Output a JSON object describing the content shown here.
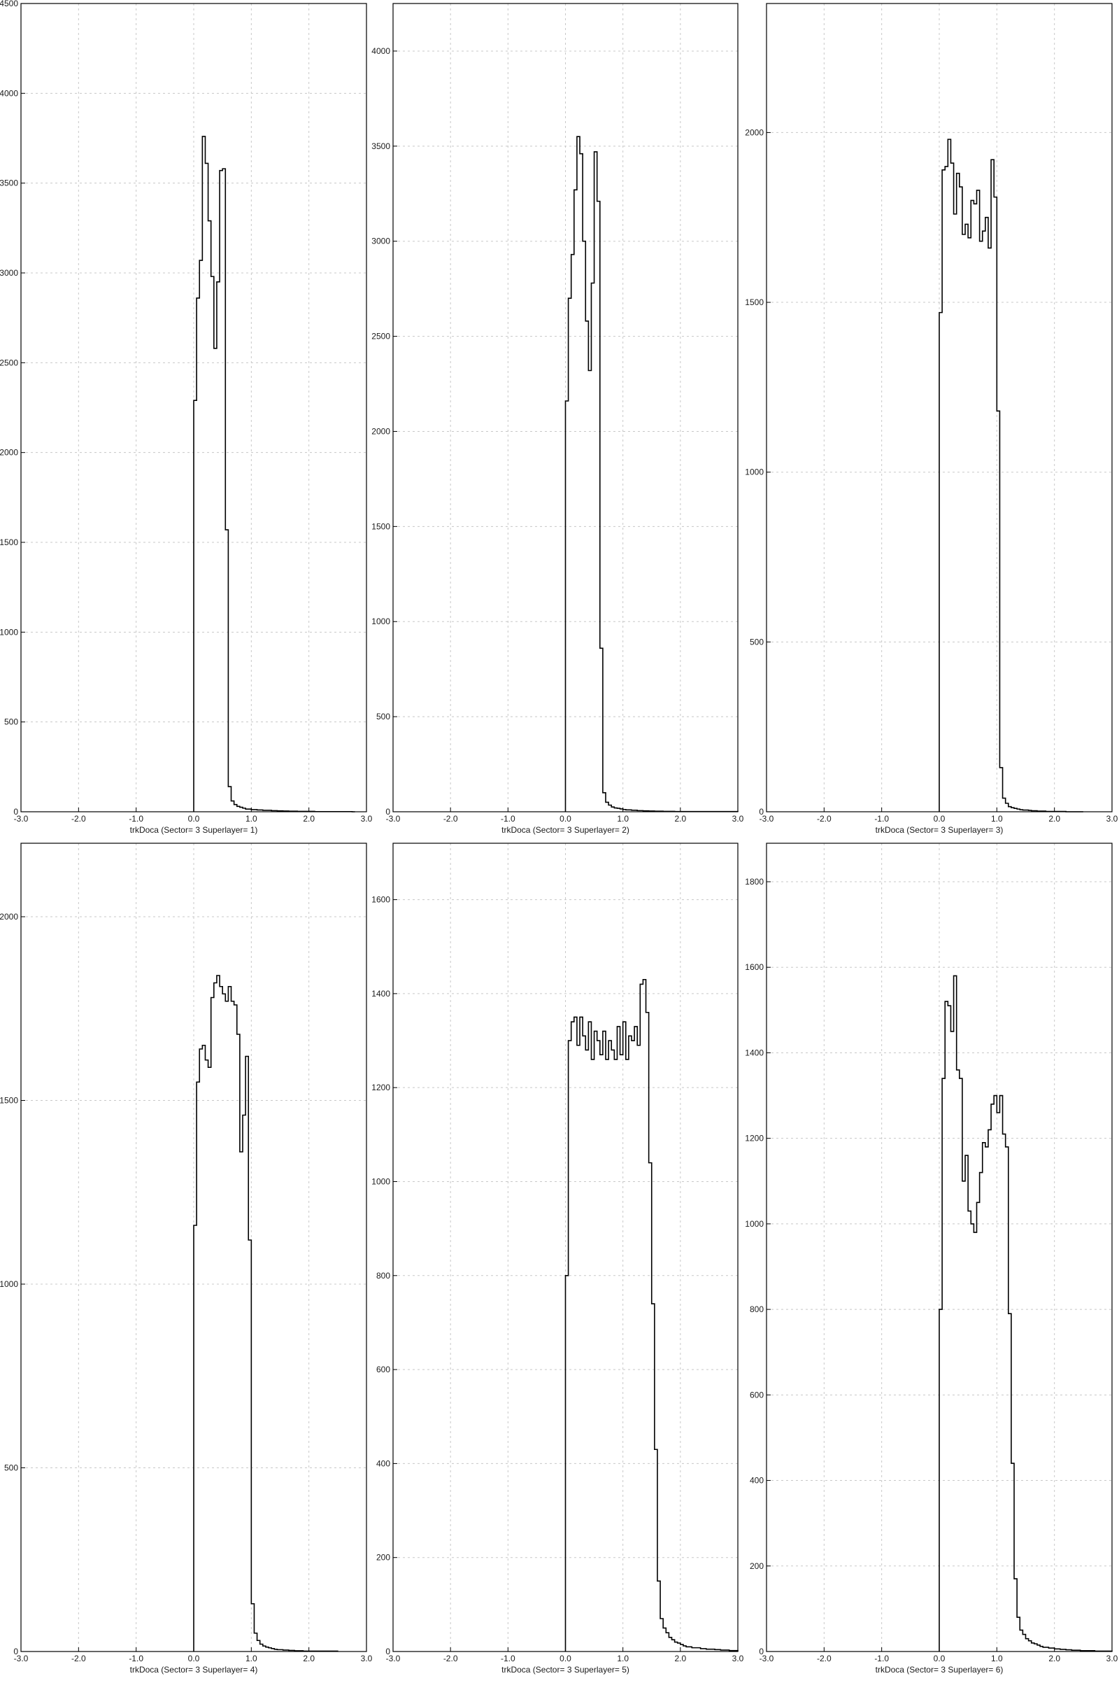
{
  "page": {
    "background": "#ffffff",
    "frame_color": "#000000",
    "grid_color": "#c8c8c8",
    "line_color": "#000000"
  },
  "chart_data": [
    {
      "type": "histogram",
      "xlabel": "trkDoca (Sector= 3 Superlayer= 1)",
      "xlim": [
        -3.0,
        3.0
      ],
      "ylim": [
        0,
        4500
      ],
      "xticks": [
        "-3.0",
        "-2.0",
        "-1.0",
        "0.0",
        "1.0",
        "2.0",
        "3.0"
      ],
      "yticks": [
        "0",
        "500",
        "1000",
        "1500",
        "2000",
        "2500",
        "3000",
        "3500",
        "4000",
        "4500"
      ],
      "grid": true,
      "bin_width": 0.05,
      "x_start": 0.0,
      "values": [
        2290,
        2860,
        3070,
        3760,
        3610,
        3290,
        2980,
        2580,
        2950,
        3570,
        3580,
        1570,
        140,
        60,
        40,
        30,
        25,
        20,
        15,
        15,
        12,
        12,
        10,
        10,
        8,
        8,
        8,
        6,
        6,
        5,
        5,
        4,
        4,
        3,
        3,
        3,
        2,
        2,
        2,
        2,
        2,
        2,
        1,
        1,
        1,
        1,
        1,
        1,
        1,
        1,
        1,
        1,
        1,
        1,
        1,
        0
      ]
    },
    {
      "type": "histogram",
      "xlabel": "trkDoca (Sector= 3 Superlayer= 2)",
      "xlim": [
        -3.0,
        3.0
      ],
      "ylim": [
        0,
        4250
      ],
      "xticks": [
        "-3.0",
        "-2.0",
        "-1.0",
        "0.0",
        "1.0",
        "2.0",
        "3.0"
      ],
      "yticks": [
        "0",
        "500",
        "1000",
        "1500",
        "2000",
        "2500",
        "3000",
        "3500",
        "4000"
      ],
      "grid": true,
      "bin_width": 0.05,
      "x_start": 0.0,
      "values": [
        2160,
        2700,
        2930,
        3270,
        3550,
        3460,
        3000,
        2580,
        2320,
        2780,
        3470,
        3210,
        860,
        100,
        50,
        35,
        25,
        20,
        18,
        15,
        12,
        10,
        10,
        8,
        8,
        6,
        6,
        5,
        5,
        4,
        4,
        3,
        3,
        3,
        2,
        2,
        2,
        2,
        1,
        1,
        1,
        1,
        1,
        1,
        1,
        1,
        1,
        1,
        1,
        1,
        1,
        1,
        1,
        1,
        1,
        1,
        1,
        1,
        1,
        1
      ]
    },
    {
      "type": "histogram",
      "xlabel": "trkDoca (Sector= 3 Superlayer= 3)",
      "xlim": [
        -3.0,
        3.0
      ],
      "ylim": [
        0,
        2380
      ],
      "xticks": [
        "-3.0",
        "-2.0",
        "-1.0",
        "0.0",
        "1.0",
        "2.0",
        "3.0"
      ],
      "yticks": [
        "0",
        "500",
        "1000",
        "1500",
        "2000"
      ],
      "grid": true,
      "bin_width": 0.05,
      "x_start": 0.0,
      "values": [
        1470,
        1890,
        1900,
        1980,
        1910,
        1760,
        1880,
        1840,
        1700,
        1730,
        1690,
        1800,
        1790,
        1830,
        1680,
        1710,
        1750,
        1660,
        1920,
        1810,
        1180,
        130,
        40,
        25,
        15,
        12,
        10,
        8,
        6,
        5,
        5,
        4,
        3,
        3,
        2,
        2,
        2,
        1,
        1,
        1,
        1,
        1,
        1,
        1,
        0,
        0,
        0,
        0,
        0,
        0
      ]
    },
    {
      "type": "histogram",
      "xlabel": "trkDoca (Sector= 3 Superlayer= 4)",
      "xlim": [
        -3.0,
        3.0
      ],
      "ylim": [
        0,
        2200
      ],
      "xticks": [
        "-3.0",
        "-2.0",
        "-1.0",
        "0.0",
        "1.0",
        "2.0",
        "3.0"
      ],
      "yticks": [
        "0",
        "500",
        "1000",
        "1500",
        "2000"
      ],
      "grid": true,
      "bin_width": 0.05,
      "x_start": 0.0,
      "values": [
        1160,
        1550,
        1640,
        1650,
        1610,
        1590,
        1780,
        1820,
        1840,
        1810,
        1790,
        1770,
        1810,
        1770,
        1760,
        1680,
        1360,
        1460,
        1620,
        1120,
        130,
        50,
        30,
        20,
        15,
        12,
        10,
        8,
        6,
        5,
        5,
        4,
        4,
        3,
        3,
        2,
        2,
        2,
        1,
        1,
        1,
        1,
        1,
        1,
        1,
        1,
        1,
        1,
        1,
        1
      ]
    },
    {
      "type": "histogram",
      "xlabel": "trkDoca (Sector= 3 Superlayer= 5)",
      "xlim": [
        -3.0,
        3.0
      ],
      "ylim": [
        0,
        1720
      ],
      "xticks": [
        "-3.0",
        "-2.0",
        "-1.0",
        "0.0",
        "1.0",
        "2.0",
        "3.0"
      ],
      "yticks": [
        "0",
        "200",
        "400",
        "600",
        "800",
        "1000",
        "1200",
        "1400",
        "1600"
      ],
      "grid": true,
      "bin_width": 0.05,
      "x_start": 0.0,
      "values": [
        800,
        1300,
        1340,
        1350,
        1290,
        1350,
        1310,
        1280,
        1340,
        1260,
        1320,
        1300,
        1270,
        1320,
        1260,
        1300,
        1280,
        1260,
        1330,
        1270,
        1340,
        1260,
        1310,
        1300,
        1330,
        1290,
        1420,
        1430,
        1360,
        1040,
        740,
        430,
        150,
        70,
        50,
        40,
        30,
        25,
        20,
        18,
        15,
        12,
        10,
        10,
        8,
        8,
        8,
        6,
        6,
        5,
        5,
        5,
        4,
        4,
        3,
        3,
        3,
        2,
        2,
        2
      ]
    },
    {
      "type": "histogram",
      "xlabel": "trkDoca (Sector= 3 Superlayer= 6)",
      "xlim": [
        -3.0,
        3.0
      ],
      "ylim": [
        0,
        1890
      ],
      "xticks": [
        "-3.0",
        "-2.0",
        "-1.0",
        "0.0",
        "1.0",
        "2.0",
        "3.0"
      ],
      "yticks": [
        "0",
        "200",
        "400",
        "600",
        "800",
        "1000",
        "1200",
        "1400",
        "1600",
        "1800"
      ],
      "grid": true,
      "bin_width": 0.05,
      "x_start": 0.0,
      "values": [
        800,
        1340,
        1520,
        1510,
        1450,
        1580,
        1360,
        1340,
        1100,
        1160,
        1030,
        1000,
        980,
        1050,
        1120,
        1190,
        1180,
        1220,
        1280,
        1300,
        1260,
        1300,
        1210,
        1180,
        790,
        440,
        170,
        80,
        50,
        40,
        30,
        25,
        20,
        18,
        15,
        12,
        10,
        10,
        8,
        8,
        6,
        6,
        5,
        5,
        4,
        4,
        3,
        3,
        3,
        2,
        2,
        2,
        2,
        2,
        1,
        1,
        1,
        1,
        1,
        1
      ]
    }
  ]
}
